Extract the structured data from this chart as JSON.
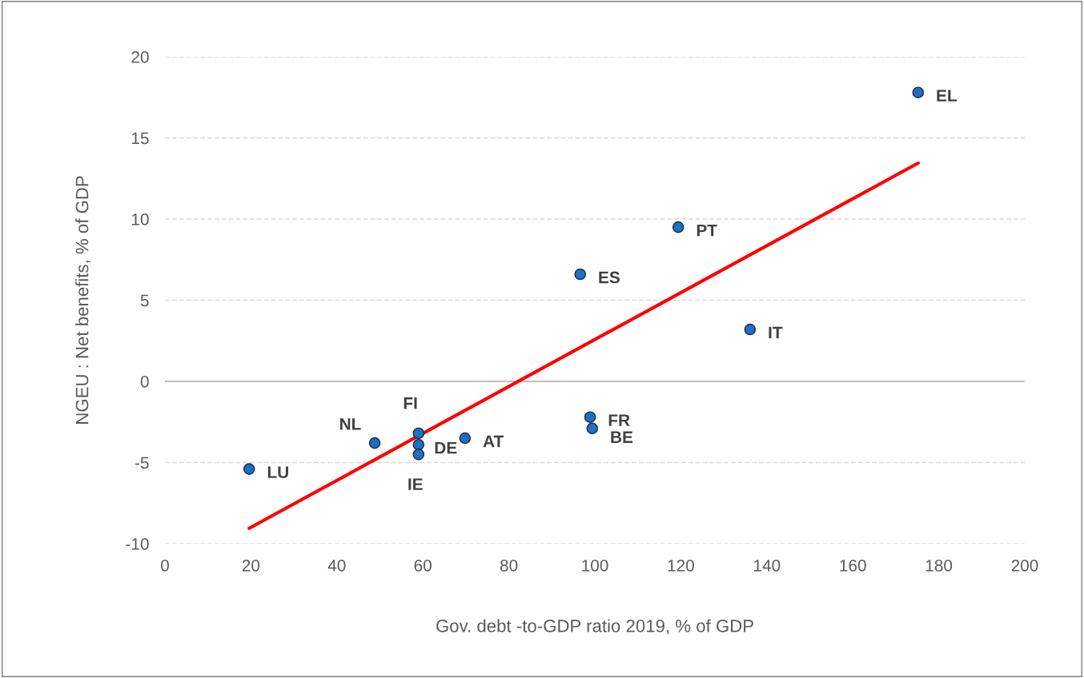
{
  "chart_data": {
    "type": "scatter",
    "xlabel": "Gov. debt -to-GDP ratio 2019, % of GDP",
    "ylabel": "NGEU : Net benefits, % of GDP",
    "xlim": [
      0,
      200
    ],
    "xticks": [
      0,
      20,
      40,
      60,
      80,
      100,
      120,
      140,
      160,
      180,
      200
    ],
    "ylim": [
      -10,
      20
    ],
    "yticks": [
      -10,
      -5,
      0,
      5,
      10,
      15,
      20
    ],
    "grid": "y",
    "legend": false,
    "marker": "circle",
    "series": [
      {
        "color": "#1f70c1",
        "x": [
          19.6,
          48.8,
          59.0,
          59.0,
          59.0,
          69.8,
          96.6,
          98.9,
          99.4,
          119.4,
          136.1,
          175.2
        ],
        "values": [
          -5.4,
          -3.8,
          -3.2,
          -3.9,
          -4.5,
          -3.5,
          6.6,
          -2.2,
          -2.9,
          9.5,
          3.2,
          17.8
        ]
      },
      {
        "type": "line",
        "color": "#ff0000",
        "marker": "none",
        "x": [
          19.6,
          175.2
        ],
        "values": [
          -9.05,
          13.45
        ]
      }
    ],
    "ref_lines": [
      {
        "axis": "y",
        "value": 0,
        "color": "#bfbfbf",
        "line_style": "solid"
      }
    ],
    "annotations": [
      {
        "text": "LU",
        "x": 19.6,
        "y": -5.4
      },
      {
        "text": "NL",
        "x": 48.8,
        "y": -3.8
      },
      {
        "text": "FI",
        "x": 59.0,
        "y": -3.2
      },
      {
        "text": "DE",
        "x": 59.0,
        "y": -3.9
      },
      {
        "text": "IE",
        "x": 59.0,
        "y": -4.5
      },
      {
        "text": "AT",
        "x": 69.8,
        "y": -3.5
      },
      {
        "text": "ES",
        "x": 96.6,
        "y": 6.6
      },
      {
        "text": "FR",
        "x": 98.9,
        "y": -2.2
      },
      {
        "text": "BE",
        "x": 99.4,
        "y": -2.9
      },
      {
        "text": "PT",
        "x": 119.4,
        "y": 9.5
      },
      {
        "text": "IT",
        "x": 136.1,
        "y": 3.2
      },
      {
        "text": "EL",
        "x": 175.2,
        "y": 17.8
      }
    ]
  }
}
